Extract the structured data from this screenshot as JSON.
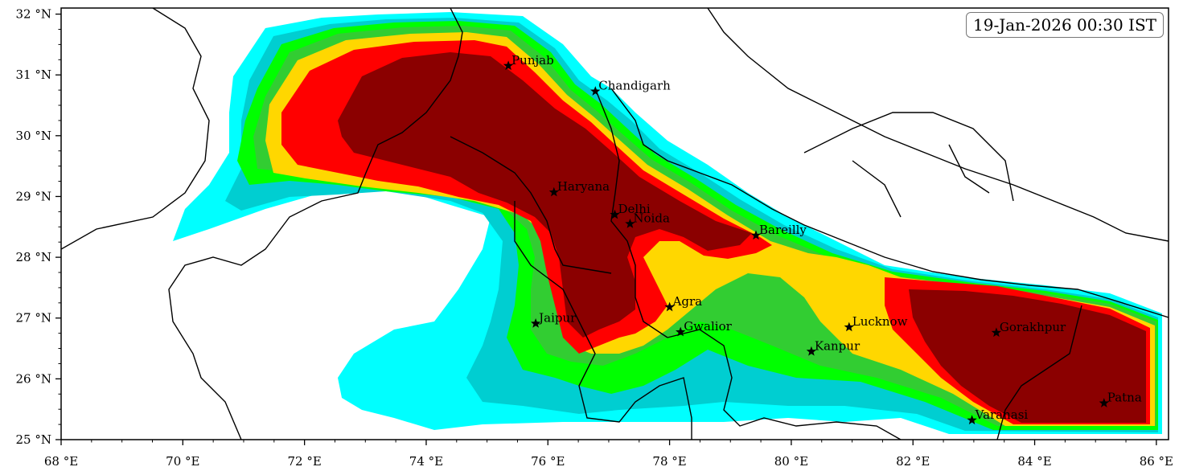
{
  "timestamp": "19-Jan-2026 00:30 IST",
  "axes": {
    "x_labels": [
      "68 °E",
      "70 °E",
      "72 °E",
      "74 °E",
      "76 °E",
      "78 °E",
      "80 °E",
      "82 °E",
      "84 °E",
      "86 °E"
    ],
    "y_labels": [
      "32 °N",
      "31 °N",
      "30 °N",
      "29 °N",
      "28 °N",
      "27 °N",
      "26 °N",
      "25 °N"
    ]
  },
  "cities": [
    {
      "name": "Punjab"
    },
    {
      "name": "Chandigarh"
    },
    {
      "name": "Haryana"
    },
    {
      "name": "Delhi"
    },
    {
      "name": "Noida"
    },
    {
      "name": "Bareilly"
    },
    {
      "name": "Agra"
    },
    {
      "name": "Jaipur"
    },
    {
      "name": "Gwalior"
    },
    {
      "name": "Lucknow"
    },
    {
      "name": "Kanpur"
    },
    {
      "name": "Gorakhpur"
    },
    {
      "name": "Patna"
    },
    {
      "name": "Varanasi"
    }
  ],
  "colors": {
    "level1": "#00ffff",
    "level2": "#00ced1",
    "level3": "#00ff00",
    "level4": "#32cd32",
    "level5": "#ffd700",
    "level6": "#ff0000",
    "level7": "#8b0000"
  }
}
